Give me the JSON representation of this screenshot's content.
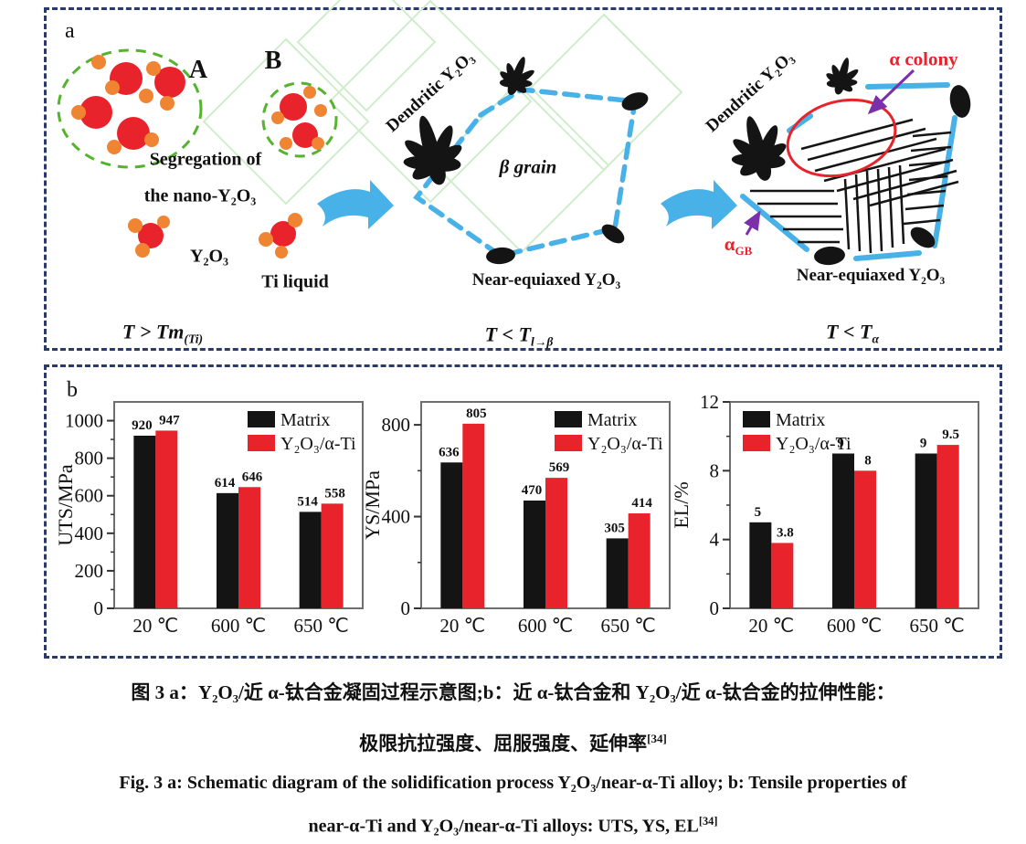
{
  "colors": {
    "accent_red": "#e8232b",
    "bar_black": "#141414",
    "sky_blue": "#47b1e8",
    "green_dashed": "#56b32e",
    "orange": "#ef8432",
    "navy_border": "#2c3a6b",
    "purple": "#7b2fa8",
    "light_green": "#cfeccb",
    "axis_gray": "#777777"
  },
  "panel_a": {
    "label": "a",
    "stage1": {
      "cluster_a_label": "A",
      "cluster_b_label": "B",
      "segregation_line1": "Segregation of",
      "segregation_line2": "the  nano-Y₂O₃",
      "y2o3_label": "Y₂O₃",
      "ti_liquid_label": "Ti liquid",
      "temp_main": "T > Tm",
      "temp_sub": "(Ti)"
    },
    "stage2": {
      "dendritic_label": "Dendritic Y₂O₃",
      "beta_grain_label": "β grain",
      "near_equiaxed_label": "Near-equiaxed Y₂O₃",
      "temp_main": "T < T",
      "temp_sub": "l→β"
    },
    "stage3": {
      "dendritic_label": "Dendritic Y₂O₃",
      "alpha_colony_label": "α colony",
      "alpha_gb_main": "α",
      "alpha_gb_sub": "GB",
      "near_equiaxed_label": "Near-equiaxed Y₂O₃",
      "temp_main": "T < T",
      "temp_sub": "α"
    }
  },
  "panel_b": {
    "label": "b"
  },
  "chart_data": [
    {
      "type": "bar",
      "title": "",
      "ylabel": "UTS/MPa",
      "xlabel": "",
      "ylim": [
        0,
        1100
      ],
      "yticks": [
        0,
        200,
        400,
        600,
        800,
        1000
      ],
      "minor_step": 100,
      "grid": false,
      "legend_pos": "top-right",
      "categories": [
        "20 ℃",
        "600 ℃",
        "650 ℃"
      ],
      "series": [
        {
          "name": "Matrix",
          "color": "#141414",
          "values": [
            920,
            614,
            514
          ]
        },
        {
          "name": "Y₂O₃/α-Ti",
          "color": "#e8232b",
          "values": [
            947,
            646,
            558
          ]
        }
      ]
    },
    {
      "type": "bar",
      "title": "",
      "ylabel": "YS/MPa",
      "xlabel": "",
      "ylim": [
        0,
        900
      ],
      "yticks": [
        0,
        400,
        800
      ],
      "minor_step": 200,
      "grid": false,
      "legend_pos": "top-right",
      "categories": [
        "20 ℃",
        "600 ℃",
        "650 ℃"
      ],
      "series": [
        {
          "name": "Matrix",
          "color": "#141414",
          "values": [
            636,
            470,
            305
          ]
        },
        {
          "name": "Y₂O₃/α-Ti",
          "color": "#e8232b",
          "values": [
            805,
            569,
            414
          ]
        }
      ]
    },
    {
      "type": "bar",
      "title": "",
      "ylabel": "EL/%",
      "xlabel": "",
      "ylim": [
        0,
        12
      ],
      "yticks": [
        0,
        4,
        8,
        12
      ],
      "minor_step": 2,
      "grid": false,
      "legend_pos": "top-left",
      "categories": [
        "20 ℃",
        "600 ℃",
        "650 ℃"
      ],
      "series": [
        {
          "name": "Matrix",
          "color": "#141414",
          "values": [
            5,
            9,
            9
          ]
        },
        {
          "name": "Y₂O₃/α-Ti",
          "color": "#e8232b",
          "values": [
            3.8,
            8,
            9.5
          ]
        }
      ]
    }
  ],
  "captions": {
    "zh_line1": "图 3  a：Y₂O₃/近 α-钛合金凝固过程示意图;b：近 α-钛合金和 Y₂O₃/近 α-钛合金的拉伸性能：",
    "zh_line2": "极限抗拉强度、屈服强度、延伸率",
    "zh_ref": "[34]",
    "en_line1": "Fig. 3  a: Schematic diagram of the solidification process Y₂O₃/near-α-Ti alloy; b: Tensile properties of",
    "en_line2": "near-α-Ti and Y₂O₃/near-α-Ti alloys: UTS, YS, EL",
    "en_ref": "[34]"
  }
}
